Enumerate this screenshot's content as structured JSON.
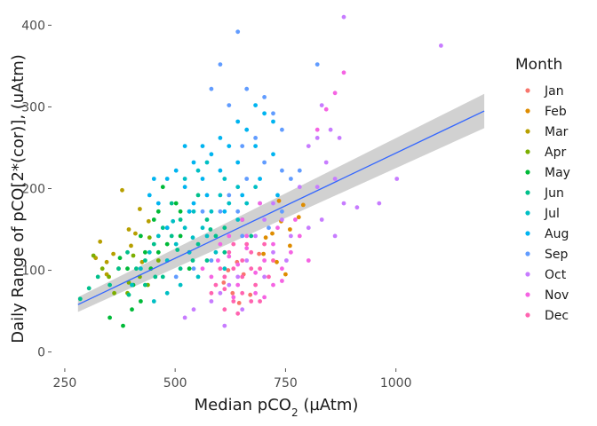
{
  "chart_data": {
    "type": "scatter",
    "title": "",
    "xlabel": "Median pCO",
    "xlabel_sub": "2",
    "xlabel_unit": " (µAtm)",
    "ylabel": "Daily Range of pCO[2*(cor)], (uAtm)",
    "xlim": [
      220,
      1230
    ],
    "ylim": [
      -20,
      420
    ],
    "x_ticks": [
      250,
      500,
      750,
      1000
    ],
    "y_ticks": [
      0,
      100,
      200,
      300,
      400
    ],
    "grid": false,
    "legend": {
      "title": "Month",
      "position": "right"
    },
    "series": [
      {
        "name": "Jan",
        "color": "#F8766D",
        "points": [
          [
            610,
            85
          ],
          [
            630,
            72
          ],
          [
            645,
            60
          ],
          [
            655,
            95
          ],
          [
            670,
            70
          ],
          [
            640,
            110
          ],
          [
            690,
            120
          ],
          [
            620,
            100
          ]
        ]
      },
      {
        "name": "Feb",
        "color": "#DE8C00",
        "points": [
          [
            700,
            120
          ],
          [
            720,
            145
          ],
          [
            740,
            160
          ],
          [
            760,
            150
          ],
          [
            735,
            185
          ],
          [
            780,
            165
          ],
          [
            790,
            180
          ],
          [
            760,
            130
          ],
          [
            730,
            110
          ],
          [
            705,
            140
          ],
          [
            750,
            95
          ]
        ]
      },
      {
        "name": "Mar",
        "color": "#B79F00",
        "points": [
          [
            330,
            135
          ],
          [
            320,
            115
          ],
          [
            345,
            110
          ],
          [
            380,
            198
          ],
          [
            360,
            120
          ],
          [
            420,
            175
          ],
          [
            400,
            130
          ],
          [
            440,
            160
          ],
          [
            425,
            110
          ],
          [
            410,
            145
          ],
          [
            345,
            95
          ],
          [
            395,
            150
          ]
        ]
      },
      {
        "name": "Apr",
        "color": "#7CAE00",
        "points": [
          [
            315,
            118
          ],
          [
            335,
            102
          ],
          [
            350,
            92
          ],
          [
            372,
            102
          ],
          [
            395,
            85
          ],
          [
            405,
            118
          ],
          [
            420,
            92
          ],
          [
            442,
            140
          ],
          [
            438,
            82
          ],
          [
            462,
            112
          ],
          [
            362,
            72
          ],
          [
            392,
            72
          ]
        ]
      },
      {
        "name": "May",
        "color": "#00BA38",
        "points": [
          [
            375,
            115
          ],
          [
            392,
            102
          ],
          [
            405,
            82
          ],
          [
            422,
            62
          ],
          [
            445,
            102
          ],
          [
            462,
            122
          ],
          [
            482,
            152
          ],
          [
            502,
            182
          ],
          [
            482,
            132
          ],
          [
            512,
            142
          ],
          [
            532,
            102
          ],
          [
            452,
            162
          ],
          [
            402,
            52
          ],
          [
            432,
            122
          ],
          [
            472,
            202
          ],
          [
            512,
            172
          ],
          [
            352,
            42
          ],
          [
            382,
            32
          ],
          [
            422,
            142
          ],
          [
            462,
            172
          ]
        ]
      },
      {
        "name": "Jun",
        "color": "#00C08B",
        "points": [
          [
            285,
            65
          ],
          [
            305,
            78
          ],
          [
            325,
            92
          ],
          [
            352,
            82
          ],
          [
            372,
            102
          ],
          [
            392,
            122
          ],
          [
            412,
            102
          ],
          [
            432,
            112
          ],
          [
            452,
            132
          ],
          [
            472,
            152
          ],
          [
            492,
            142
          ],
          [
            512,
            162
          ],
          [
            532,
            122
          ],
          [
            552,
            132
          ],
          [
            572,
            112
          ],
          [
            592,
            142
          ],
          [
            612,
            122
          ],
          [
            432,
            82
          ],
          [
            472,
            92
          ],
          [
            512,
            102
          ],
          [
            492,
            182
          ],
          [
            532,
            172
          ],
          [
            552,
            192
          ],
          [
            572,
            162
          ],
          [
            612,
            152
          ],
          [
            652,
            162
          ],
          [
            672,
            142
          ],
          [
            455,
            92
          ],
          [
            395,
            70
          ],
          [
            505,
            125
          ],
          [
            540,
            112
          ],
          [
            580,
            150
          ]
        ]
      },
      {
        "name": "Jul",
        "color": "#00BFC4",
        "points": [
          [
            402,
            82
          ],
          [
            422,
            102
          ],
          [
            442,
            122
          ],
          [
            462,
            142
          ],
          [
            482,
            112
          ],
          [
            502,
            132
          ],
          [
            522,
            152
          ],
          [
            542,
            172
          ],
          [
            562,
            152
          ],
          [
            582,
            172
          ],
          [
            602,
            192
          ],
          [
            622,
            182
          ],
          [
            642,
            202
          ],
          [
            512,
            82
          ],
          [
            552,
            92
          ],
          [
            482,
            72
          ],
          [
            452,
            62
          ],
          [
            532,
            122
          ],
          [
            572,
            142
          ],
          [
            592,
            122
          ],
          [
            612,
            102
          ],
          [
            642,
            162
          ],
          [
            662,
            182
          ],
          [
            682,
            202
          ],
          [
            552,
            222
          ],
          [
            522,
            212
          ],
          [
            572,
            232
          ],
          [
            612,
            212
          ],
          [
            495,
            160
          ],
          [
            540,
            140
          ]
        ]
      },
      {
        "name": "Aug",
        "color": "#00B4F0",
        "points": [
          [
            442,
            192
          ],
          [
            462,
            182
          ],
          [
            482,
            212
          ],
          [
            502,
            222
          ],
          [
            522,
            202
          ],
          [
            542,
            232
          ],
          [
            562,
            212
          ],
          [
            582,
            242
          ],
          [
            602,
            262
          ],
          [
            622,
            252
          ],
          [
            642,
            282
          ],
          [
            662,
            272
          ],
          [
            682,
            302
          ],
          [
            702,
            292
          ],
          [
            722,
            282
          ],
          [
            562,
            252
          ],
          [
            522,
            252
          ],
          [
            602,
            222
          ],
          [
            642,
            232
          ],
          [
            682,
            252
          ],
          [
            722,
            242
          ],
          [
            482,
            152
          ],
          [
            532,
            172
          ],
          [
            572,
            192
          ],
          [
            612,
            172
          ],
          [
            652,
            192
          ],
          [
            692,
            212
          ],
          [
            732,
            192
          ],
          [
            452,
            212
          ],
          [
            542,
            182
          ]
        ]
      },
      {
        "name": "Sep",
        "color": "#619CFF",
        "points": [
          [
            642,
            392
          ],
          [
            602,
            352
          ],
          [
            582,
            322
          ],
          [
            622,
            302
          ],
          [
            662,
            322
          ],
          [
            702,
            312
          ],
          [
            722,
            292
          ],
          [
            742,
            272
          ],
          [
            682,
            262
          ],
          [
            652,
            252
          ],
          [
            702,
            232
          ],
          [
            742,
            222
          ],
          [
            762,
            212
          ],
          [
            782,
            222
          ],
          [
            662,
            212
          ],
          [
            622,
            192
          ],
          [
            602,
            172
          ],
          [
            562,
            172
          ],
          [
            642,
            172
          ],
          [
            692,
            182
          ],
          [
            742,
            172
          ],
          [
            822,
            352
          ],
          [
            652,
            142
          ],
          [
            712,
            152
          ],
          [
            502,
            92
          ],
          [
            542,
            102
          ],
          [
            582,
            112
          ]
        ]
      },
      {
        "name": "Oct",
        "color": "#C77CFF",
        "points": [
          [
            882,
            410
          ],
          [
            1102,
            375
          ],
          [
            832,
            302
          ],
          [
            852,
            272
          ],
          [
            872,
            262
          ],
          [
            822,
            262
          ],
          [
            802,
            252
          ],
          [
            842,
            232
          ],
          [
            782,
            202
          ],
          [
            822,
            202
          ],
          [
            862,
            212
          ],
          [
            882,
            182
          ],
          [
            912,
            177
          ],
          [
            962,
            182
          ],
          [
            1002,
            212
          ],
          [
            722,
            182
          ],
          [
            742,
            162
          ],
          [
            762,
            142
          ],
          [
            702,
            162
          ],
          [
            682,
            142
          ],
          [
            662,
            112
          ],
          [
            642,
            92
          ],
          [
            622,
            82
          ],
          [
            602,
            72
          ],
          [
            582,
            62
          ],
          [
            542,
            52
          ],
          [
            522,
            42
          ],
          [
            612,
            32
          ],
          [
            722,
            122
          ],
          [
            752,
            112
          ],
          [
            802,
            152
          ],
          [
            832,
            162
          ],
          [
            862,
            142
          ],
          [
            652,
            52
          ],
          [
            702,
            92
          ]
        ]
      },
      {
        "name": "Nov",
        "color": "#F564E3",
        "points": [
          [
            882,
            342
          ],
          [
            862,
            317
          ],
          [
            842,
            297
          ],
          [
            822,
            272
          ],
          [
            602,
            132
          ],
          [
            622,
            117
          ],
          [
            642,
            107
          ],
          [
            662,
            127
          ],
          [
            682,
            97
          ],
          [
            702,
            112
          ],
          [
            722,
            132
          ],
          [
            742,
            102
          ],
          [
            762,
            122
          ],
          [
            782,
            142
          ],
          [
            802,
            112
          ],
          [
            582,
            92
          ],
          [
            562,
            102
          ],
          [
            642,
            82
          ],
          [
            682,
            72
          ],
          [
            722,
            82
          ],
          [
            622,
            142
          ],
          [
            652,
            162
          ],
          [
            692,
            182
          ],
          [
            732,
            152
          ],
          [
            772,
            162
          ],
          [
            597,
            112
          ],
          [
            612,
            92
          ],
          [
            632,
            67
          ],
          [
            662,
            142
          ],
          [
            702,
            67
          ],
          [
            742,
            87
          ]
        ]
      },
      {
        "name": "Dec",
        "color": "#FF64B0",
        "points": [
          [
            592,
            82
          ],
          [
            612,
            92
          ],
          [
            632,
            102
          ],
          [
            652,
            112
          ],
          [
            672,
            122
          ],
          [
            692,
            102
          ],
          [
            712,
            92
          ],
          [
            652,
            72
          ],
          [
            632,
            62
          ],
          [
            672,
            62
          ],
          [
            612,
            52
          ],
          [
            642,
            47
          ],
          [
            602,
            102
          ],
          [
            622,
            122
          ],
          [
            662,
            132
          ],
          [
            702,
            132
          ],
          [
            682,
            82
          ],
          [
            722,
            112
          ],
          [
            582,
            72
          ],
          [
            652,
            92
          ],
          [
            692,
            62
          ],
          [
            632,
            132
          ],
          [
            612,
            77
          ],
          [
            672,
            102
          ]
        ]
      }
    ],
    "trend": {
      "color": "#3366FF",
      "band_color": "#bdbdbd",
      "x": [
        280,
        1200
      ],
      "y": [
        58,
        295
      ],
      "se_low": [
        49,
        274
      ],
      "se_high": [
        67,
        316
      ]
    }
  }
}
